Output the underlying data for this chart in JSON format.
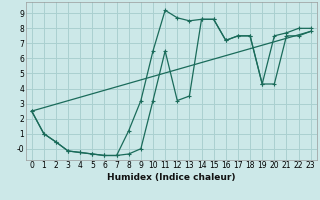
{
  "xlabel": "Humidex (Indice chaleur)",
  "background_color": "#cce8e8",
  "grid_color": "#aad0d0",
  "line_color": "#1a6b5a",
  "xlim": [
    -0.5,
    23.5
  ],
  "ylim": [
    -0.75,
    9.75
  ],
  "xticks": [
    0,
    1,
    2,
    3,
    4,
    5,
    6,
    7,
    8,
    9,
    10,
    11,
    12,
    13,
    14,
    15,
    16,
    17,
    18,
    19,
    20,
    21,
    22,
    23
  ],
  "yticks": [
    0,
    1,
    2,
    3,
    4,
    5,
    6,
    7,
    8,
    9
  ],
  "curve1_x": [
    0,
    1,
    2,
    3,
    4,
    5,
    6,
    7,
    8,
    9,
    10,
    11,
    12,
    13,
    14,
    15,
    16,
    17,
    18,
    19,
    20,
    21,
    22,
    23
  ],
  "curve1_y": [
    2.5,
    1.0,
    0.45,
    -0.15,
    -0.25,
    -0.35,
    -0.45,
    -0.45,
    -0.35,
    0.0,
    3.2,
    6.5,
    3.2,
    3.5,
    8.6,
    8.6,
    7.2,
    7.5,
    7.5,
    4.3,
    4.3,
    7.5,
    7.5,
    7.8
  ],
  "curve2_x": [
    0,
    1,
    2,
    3,
    4,
    5,
    6,
    7,
    8,
    9,
    10,
    11,
    12,
    13,
    14,
    15,
    16,
    17,
    18,
    19,
    20,
    21,
    22,
    23
  ],
  "curve2_y": [
    2.5,
    1.0,
    0.45,
    -0.15,
    -0.25,
    -0.35,
    -0.45,
    -0.45,
    1.2,
    3.2,
    6.5,
    9.2,
    8.7,
    8.5,
    8.6,
    8.6,
    7.2,
    7.5,
    7.5,
    4.3,
    7.5,
    7.7,
    8.0,
    8.0
  ],
  "line_x": [
    0,
    23
  ],
  "line_y": [
    2.5,
    7.8
  ]
}
